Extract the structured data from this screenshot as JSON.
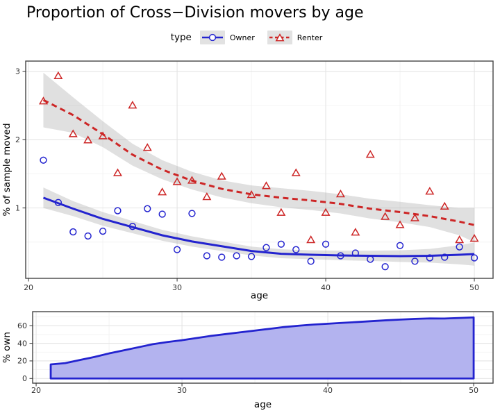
{
  "title": "Proportion of Cross−Division movers by age",
  "legend": {
    "title": "type",
    "key_bg": "#e2e2e2",
    "entries": [
      {
        "label": "Owner",
        "color": "#2323cf",
        "marker": "circle",
        "linetype": "solid"
      },
      {
        "label": "Renter",
        "color": "#cd2626",
        "marker": "triangle",
        "linetype": "dashed"
      }
    ]
  },
  "colors": {
    "owner_blue": "#2323cf",
    "renter_red": "#cd2626",
    "ci_band": "#999999",
    "area_fill": "#b3b3ef",
    "grid_major": "#e4e4e4",
    "grid_minor": "#f1f1f1",
    "panel_border": "#454545",
    "tick_text": "#303030"
  },
  "chart_data": [
    {
      "type": "scatter",
      "title": "Proportion of Cross−Division movers by age",
      "xlabel": "age",
      "ylabel": "% of sample moved",
      "xlim": [
        19.81,
        51.26
      ],
      "ylim": [
        -0.03,
        3.15
      ],
      "xticks": [
        20,
        30,
        40,
        50
      ],
      "xticks_minor": [
        25,
        35,
        45
      ],
      "yticks": [
        1,
        2,
        3
      ],
      "yticks_minor": [
        0.5,
        1.5,
        2.5
      ],
      "legend_position": "top",
      "grid": true,
      "series": [
        {
          "name": "Owner",
          "marker": "circle",
          "linetype": "solid",
          "color": "#2323cf",
          "points": [
            [
              21,
              1.7
            ],
            [
              22,
              1.08
            ],
            [
              23,
              0.65
            ],
            [
              24,
              0.59
            ],
            [
              25,
              0.66
            ],
            [
              26,
              0.96
            ],
            [
              27,
              0.73
            ],
            [
              28,
              0.99
            ],
            [
              29,
              0.91
            ],
            [
              30,
              0.39
            ],
            [
              31,
              0.92
            ],
            [
              32,
              0.3
            ],
            [
              33,
              0.28
            ],
            [
              34,
              0.3
            ],
            [
              35,
              0.29
            ],
            [
              36,
              0.42
            ],
            [
              37,
              0.47
            ],
            [
              38,
              0.39
            ],
            [
              39,
              0.22
            ],
            [
              40,
              0.47
            ],
            [
              41,
              0.3
            ],
            [
              42,
              0.34
            ],
            [
              43,
              0.25
            ],
            [
              44,
              0.14
            ],
            [
              45,
              0.45
            ],
            [
              46,
              0.22
            ],
            [
              47,
              0.27
            ],
            [
              48,
              0.28
            ],
            [
              49,
              0.43
            ],
            [
              50,
              0.27
            ]
          ],
          "smooth_ci": [
            [
              21,
              1.15,
              0.15
            ],
            [
              23,
              0.99,
              0.11
            ],
            [
              25,
              0.84,
              0.1
            ],
            [
              27,
              0.72,
              0.09
            ],
            [
              29,
              0.6,
              0.08
            ],
            [
              31,
              0.51,
              0.075
            ],
            [
              33,
              0.44,
              0.07
            ],
            [
              35,
              0.37,
              0.065
            ],
            [
              37,
              0.33,
              0.065
            ],
            [
              39,
              0.315,
              0.065
            ],
            [
              41,
              0.305,
              0.07
            ],
            [
              43,
              0.3,
              0.075
            ],
            [
              45,
              0.295,
              0.085
            ],
            [
              47,
              0.3,
              0.1
            ],
            [
              49,
              0.315,
              0.14
            ],
            [
              50,
              0.325,
              0.17
            ]
          ]
        },
        {
          "name": "Renter",
          "marker": "triangle",
          "linetype": "dashed",
          "color": "#cd2626",
          "points": [
            [
              21,
              2.56
            ],
            [
              22,
              2.93
            ],
            [
              23,
              2.08
            ],
            [
              24,
              1.99
            ],
            [
              25,
              2.05
            ],
            [
              26,
              1.51
            ],
            [
              27,
              2.5
            ],
            [
              28,
              1.88
            ],
            [
              29,
              1.23
            ],
            [
              30,
              1.38
            ],
            [
              31,
              1.4
            ],
            [
              32,
              1.16
            ],
            [
              33,
              1.46
            ],
            [
              35,
              1.19
            ],
            [
              36,
              1.32
            ],
            [
              37,
              0.93
            ],
            [
              38,
              1.51
            ],
            [
              39,
              0.53
            ],
            [
              40,
              0.93
            ],
            [
              41,
              1.2
            ],
            [
              42,
              0.64
            ],
            [
              43,
              1.78
            ],
            [
              44,
              0.87
            ],
            [
              45,
              0.75
            ],
            [
              46,
              0.85
            ],
            [
              47,
              1.24
            ],
            [
              48,
              1.02
            ],
            [
              49,
              0.53
            ],
            [
              50,
              0.55
            ]
          ],
          "smooth_ci": [
            [
              21,
              2.58,
              0.4
            ],
            [
              23,
              2.36,
              0.26
            ],
            [
              25,
              2.08,
              0.19
            ],
            [
              27,
              1.78,
              0.16
            ],
            [
              29,
              1.56,
              0.14
            ],
            [
              31,
              1.4,
              0.13
            ],
            [
              33,
              1.28,
              0.125
            ],
            [
              35,
              1.2,
              0.13
            ],
            [
              37,
              1.15,
              0.14
            ],
            [
              39,
              1.11,
              0.14
            ],
            [
              41,
              1.06,
              0.14
            ],
            [
              43,
              0.99,
              0.145
            ],
            [
              45,
              0.94,
              0.15
            ],
            [
              47,
              0.88,
              0.16
            ],
            [
              49,
              0.8,
              0.2
            ],
            [
              50,
              0.75,
              0.25
            ]
          ]
        }
      ]
    },
    {
      "type": "area",
      "xlabel": "age",
      "ylabel": "% own",
      "xlim": [
        19.76,
        51.33
      ],
      "ylim": [
        -5.3,
        76
      ],
      "xticks": [
        20,
        30,
        40,
        50
      ],
      "xticks_minor": [
        25,
        35,
        45
      ],
      "yticks": [
        0,
        20,
        40,
        60
      ],
      "yticks_minor": [
        10,
        30,
        50,
        70
      ],
      "grid": true,
      "x": [
        21,
        22,
        23,
        24,
        25,
        26,
        27,
        28,
        29,
        30,
        31,
        32,
        33,
        34,
        35,
        36,
        37,
        38,
        39,
        40,
        41,
        42,
        43,
        44,
        45,
        46,
        47,
        48,
        49,
        50
      ],
      "y": [
        16,
        17.5,
        21,
        24.5,
        28.5,
        32,
        35.5,
        39,
        41.5,
        43.5,
        46,
        48.5,
        50.5,
        52.5,
        54.5,
        56.5,
        58.5,
        60,
        61.3,
        62.3,
        63.3,
        64.2,
        65.2,
        66.2,
        67,
        67.8,
        68.3,
        68.2,
        68.8,
        69.5
      ],
      "baseline": 0
    }
  ]
}
